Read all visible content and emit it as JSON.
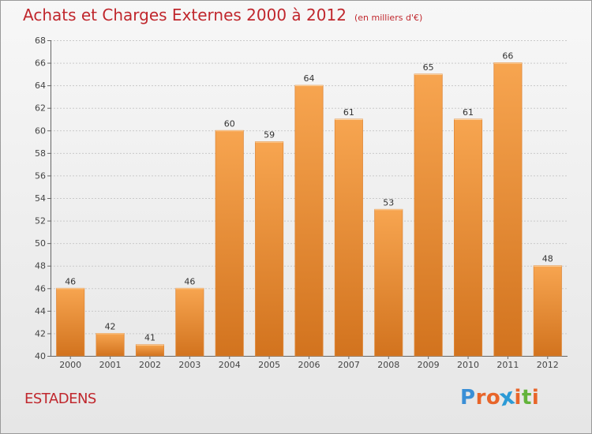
{
  "header": {
    "title": "Achats et Charges Externes 2000 à 2012",
    "subtitle": "(en milliers d'€)"
  },
  "footer": {
    "commune": "ESTADENS",
    "logo_letters": [
      "P",
      "r",
      "o",
      "x",
      "i",
      "t",
      "i"
    ],
    "logo_colors": [
      "#3a8fd6",
      "#e8652a",
      "#e8652a",
      "#2b9ad6",
      "#e8652a",
      "#62b33a",
      "#e8652a"
    ]
  },
  "colors": {
    "bar_light": "#f7a550",
    "bar_dark": "#d2731e",
    "title": "#c0272d"
  },
  "chart_data": {
    "type": "bar",
    "title": "Achats et Charges Externes 2000 à 2012",
    "subtitle": "(en milliers d'€)",
    "categories": [
      "2000",
      "2001",
      "2002",
      "2003",
      "2004",
      "2005",
      "2006",
      "2007",
      "2008",
      "2009",
      "2010",
      "2011",
      "2012"
    ],
    "values": [
      46,
      42,
      41,
      46,
      60,
      59,
      64,
      61,
      53,
      65,
      61,
      66,
      48
    ],
    "ylim": [
      40,
      68
    ],
    "yticks": [
      40,
      42,
      44,
      46,
      48,
      50,
      52,
      54,
      56,
      58,
      60,
      62,
      64,
      66,
      68
    ],
    "grid": true,
    "legend": "none",
    "xlabel": "",
    "ylabel": ""
  }
}
